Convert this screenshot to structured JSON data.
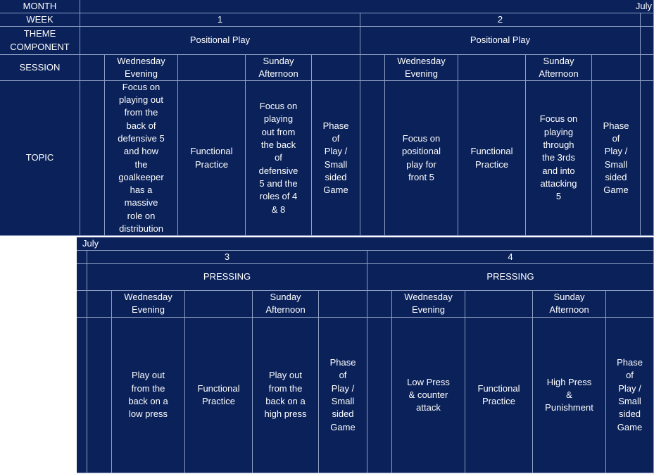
{
  "table1": {
    "labels": {
      "month": "MONTH",
      "week": "WEEK",
      "theme_component": "THEME\nCOMPONENT",
      "session": "SESSION",
      "topic": "TOPIC"
    },
    "month_value": "July",
    "weeks": [
      {
        "number": "1",
        "theme": "Positional Play",
        "sessions": [
          "Wednesday\nEvening",
          "Sunday\nAfternoon"
        ],
        "topics": [
          "Focus on\nplaying out\nfrom the\nback of\ndefensive 5\nand how\nthe\ngoalkeeper\nhas a\nmassive\nrole on\ndistribution",
          "Functional\nPractice",
          "Focus on\nplaying\nout from\nthe back\nof\ndefensive\n5 and the\nroles of 4\n& 8",
          "Phase\nof\nPlay /\nSmall\nsided\nGame"
        ]
      },
      {
        "number": "2",
        "theme": "Positional Play",
        "sessions": [
          "Wednesday\nEvening",
          "Sunday\nAfternoon"
        ],
        "topics": [
          "Focus on\npositional\nplay for\nfront 5",
          "Functional\nPractice",
          "Focus on\nplaying\nthrough\nthe 3rds\nand into\nattacking\n5",
          "Phase\nof\nPlay /\nSmall\nsided\nGame"
        ]
      }
    ]
  },
  "table2": {
    "month_value": "July",
    "weeks": [
      {
        "number": "3",
        "theme": "PRESSING",
        "sessions": [
          "Wednesday\nEvening",
          "Sunday\nAfternoon"
        ],
        "topics": [
          "Play out\nfrom the\nback on a\nlow press",
          "Functional\nPractice",
          "Play out\nfrom the\nback on a\nhigh press",
          "Phase\nof\nPlay /\nSmall\nsided\nGame"
        ]
      },
      {
        "number": "4",
        "theme": "PRESSING",
        "sessions": [
          "Wednesday\nEvening",
          "Sunday\nAfternoon"
        ],
        "topics": [
          "Low Press\n& counter\nattack",
          "Functional\nPractice",
          "High Press\n&\nPunishment",
          "Phase\nof\nPlay /\nSmall\nsided\nGame"
        ]
      }
    ]
  }
}
